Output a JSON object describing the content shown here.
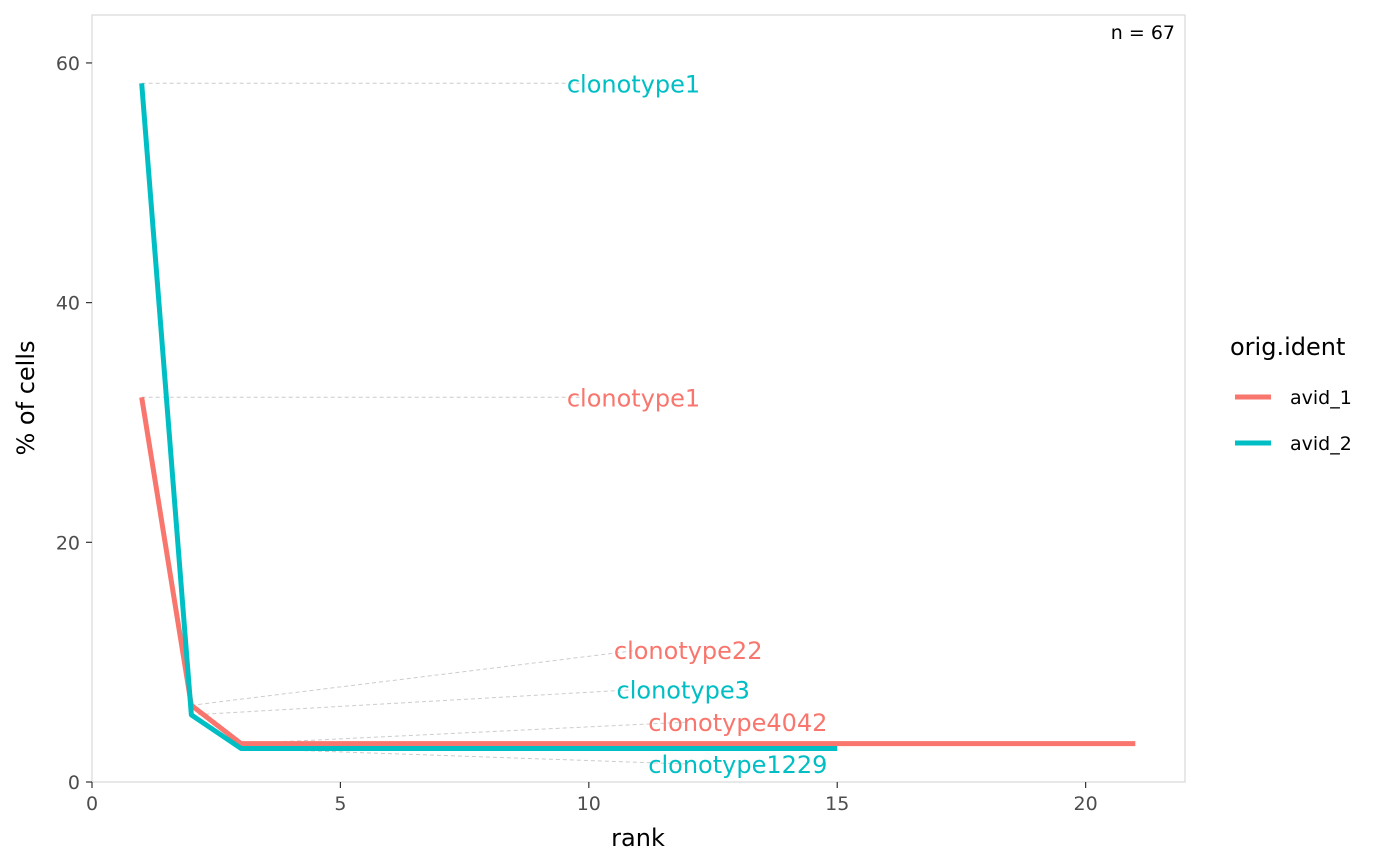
{
  "chart_data": {
    "type": "line",
    "xlabel": "rank",
    "ylabel": "% of cells",
    "xlim": [
      0,
      22
    ],
    "ylim": [
      0,
      64
    ],
    "x_ticks": [
      0,
      5,
      10,
      15,
      20
    ],
    "y_ticks": [
      0,
      20,
      40,
      60
    ],
    "grid": false,
    "legend": {
      "title": "orig.ident",
      "placement": "right"
    },
    "annotation": "n = 67",
    "series": [
      {
        "name": "avid_1",
        "color": "#F8766D",
        "x": [
          1,
          2,
          3,
          4,
          5,
          6,
          7,
          8,
          9,
          10,
          11,
          12,
          13,
          14,
          15,
          16,
          17,
          18,
          19,
          20,
          21
        ],
        "y": [
          32.1,
          6.4,
          3.2,
          3.2,
          3.2,
          3.2,
          3.2,
          3.2,
          3.2,
          3.2,
          3.2,
          3.2,
          3.2,
          3.2,
          3.2,
          3.2,
          3.2,
          3.2,
          3.2,
          3.2,
          3.2
        ]
      },
      {
        "name": "avid_2",
        "color": "#00BFC4",
        "x": [
          1,
          2,
          3,
          4,
          5,
          6,
          7,
          8,
          9,
          10,
          11,
          12,
          13,
          14,
          15
        ],
        "y": [
          58.3,
          5.6,
          2.8,
          2.8,
          2.8,
          2.8,
          2.8,
          2.8,
          2.8,
          2.8,
          2.8,
          2.8,
          2.8,
          2.8,
          2.8
        ]
      }
    ],
    "point_labels": [
      {
        "text": "clonotype1",
        "series": "avid_2",
        "point": [
          1,
          58.3
        ],
        "label_at": [
          10.9,
          58.3
        ]
      },
      {
        "text": "clonotype1",
        "series": "avid_1",
        "point": [
          1,
          32.1
        ],
        "label_at": [
          10.9,
          32.1
        ]
      },
      {
        "text": "clonotype22",
        "series": "avid_1",
        "point": [
          2,
          6.4
        ],
        "label_at": [
          12.0,
          11.0
        ]
      },
      {
        "text": "clonotype3",
        "series": "avid_2",
        "point": [
          2,
          5.6
        ],
        "label_at": [
          11.9,
          7.7
        ]
      },
      {
        "text": "clonotype4042",
        "series": "avid_1",
        "point": [
          3,
          3.2
        ],
        "label_at": [
          13.0,
          5.0
        ]
      },
      {
        "text": "clonotype1229",
        "series": "avid_2",
        "point": [
          3,
          2.8
        ],
        "label_at": [
          13.0,
          1.5
        ]
      }
    ]
  }
}
